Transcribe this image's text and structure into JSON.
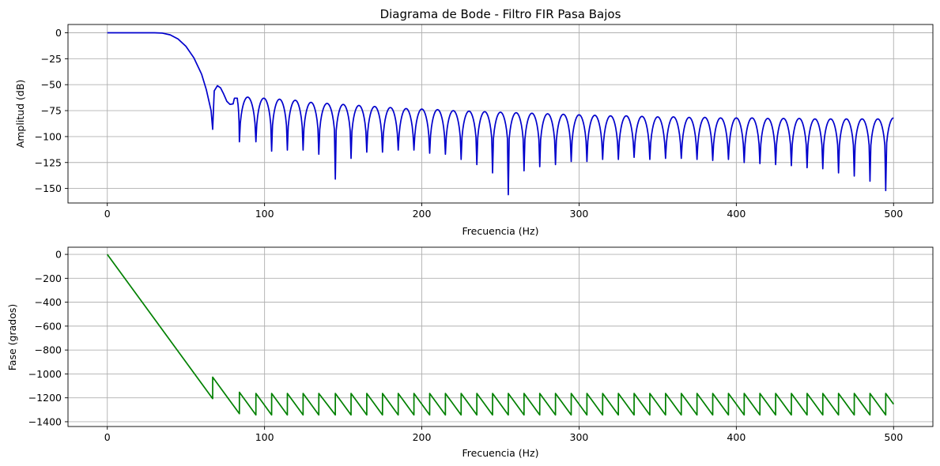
{
  "chart_data": [
    {
      "type": "line",
      "title": "Diagrama de Bode - Filtro FIR Pasa Bajos",
      "xlabel": "Frecuencia (Hz)",
      "ylabel": "Amplitud (dB)",
      "xlim": [
        -25,
        525
      ],
      "ylim": [
        -164,
        8
      ],
      "xticks": [
        0,
        100,
        200,
        300,
        400,
        500
      ],
      "xtick_labels": [
        "0",
        "100",
        "200",
        "300",
        "400",
        "500"
      ],
      "yticks": [
        0,
        -25,
        -50,
        -75,
        -100,
        -125,
        -150
      ],
      "ytick_labels": [
        "0",
        "−25",
        "−50",
        "−75",
        "−100",
        "−125",
        "−150"
      ],
      "grid": true,
      "series": [
        {
          "color": "#0000cc",
          "passband": {
            "x": [
              0,
              10,
              20,
              30,
              35,
              40,
              45,
              50,
              55,
              60,
              63,
              66,
              67
            ],
            "y": [
              0,
              0,
              0,
              0,
              -0.3,
              -2,
              -6,
              -13,
              -24,
              -40,
              -55,
              -75,
              -93
            ]
          },
          "first_sidelobe": {
            "x": [
              67,
              68,
              70,
              72,
              74,
              76,
              78,
              80
            ],
            "y": [
              -93,
              -56,
              -51,
              -53,
              -59,
              -66,
              -69,
              -68.5
            ]
          },
          "notches_x": [
            67,
            84,
            94.5,
            104.5,
            114.5,
            124.5,
            134.5,
            145,
            155,
            165,
            175,
            185,
            195,
            205,
            215,
            225,
            235,
            245,
            255,
            265,
            275,
            285,
            295,
            305,
            315,
            325,
            335,
            345,
            355,
            365,
            375,
            385,
            395,
            405,
            415,
            425,
            435,
            445,
            455,
            465,
            475,
            485,
            495
          ],
          "notch_depths": [
            -93,
            -105,
            -105,
            -114,
            -113,
            -113,
            -117,
            -141,
            -121,
            -115,
            -115,
            -113,
            -113,
            -116,
            -117,
            -122,
            -127,
            -135,
            -156,
            -133,
            -129,
            -127,
            -124,
            -124,
            -122,
            -122,
            -120,
            -122,
            -121,
            -121,
            -122,
            -123,
            -122,
            -125,
            -126,
            -127,
            -128,
            -130,
            -131,
            -135,
            -138,
            -143,
            -152
          ],
          "lobe_peaks": [
            -63,
            -62,
            -63,
            -64,
            -65,
            -67,
            -68,
            -69,
            -70,
            -71,
            -72,
            -73,
            -73.5,
            -74,
            -75,
            -75.5,
            -76,
            -76.5,
            -77,
            -77.5,
            -78,
            -78.5,
            -79,
            -79.5,
            -80,
            -80,
            -80.5,
            -81,
            -81,
            -81.5,
            -81.5,
            -82,
            -82,
            -82,
            -82.5,
            -82.5,
            -82.5,
            -83,
            -83,
            -83,
            -83,
            -83
          ],
          "endpoint": {
            "x": 500,
            "y": -82
          }
        }
      ]
    },
    {
      "type": "line",
      "title": "",
      "xlabel": "Frecuencia (Hz)",
      "ylabel": "Fase (grados)",
      "xlim": [
        -25,
        525
      ],
      "ylim": [
        -1440,
        60
      ],
      "xticks": [
        0,
        100,
        200,
        300,
        400,
        500
      ],
      "xtick_labels": [
        "0",
        "100",
        "200",
        "300",
        "400",
        "500"
      ],
      "yticks": [
        0,
        -200,
        -400,
        -600,
        -800,
        -1000,
        -1200,
        -1400
      ],
      "ytick_labels": [
        "0",
        "−200",
        "−400",
        "−600",
        "−800",
        "−1000",
        "−1200",
        "−1400"
      ],
      "grid": true,
      "series": [
        {
          "color": "#008000",
          "x": [
            0,
            67,
            67,
            84,
            84,
            94.5,
            94.5,
            104.5,
            104.5,
            114.5,
            114.5,
            124.5,
            124.5,
            134.5,
            134.5,
            145,
            145,
            155,
            155,
            165,
            165,
            175,
            175,
            185,
            185,
            195,
            195,
            205,
            205,
            215,
            215,
            225,
            225,
            235,
            235,
            245,
            245,
            255,
            255,
            265,
            265,
            275,
            275,
            285,
            285,
            295,
            295,
            305,
            305,
            315,
            315,
            325,
            325,
            335,
            335,
            345,
            345,
            355,
            355,
            365,
            365,
            375,
            375,
            385,
            385,
            395,
            395,
            405,
            405,
            415,
            415,
            425,
            425,
            435,
            435,
            445,
            445,
            455,
            455,
            465,
            465,
            475,
            475,
            485,
            485,
            495,
            495,
            500
          ],
          "y": [
            0,
            -1207,
            -1027,
            -1333,
            -1153,
            -1343,
            -1163,
            -1343,
            -1163,
            -1343,
            -1163,
            -1343,
            -1163,
            -1343,
            -1163,
            -1343,
            -1163,
            -1343,
            -1163,
            -1343,
            -1163,
            -1343,
            -1163,
            -1343,
            -1163,
            -1343,
            -1163,
            -1343,
            -1163,
            -1343,
            -1163,
            -1343,
            -1163,
            -1343,
            -1163,
            -1343,
            -1163,
            -1343,
            -1163,
            -1343,
            -1163,
            -1343,
            -1163,
            -1343,
            -1163,
            -1343,
            -1163,
            -1343,
            -1163,
            -1343,
            -1163,
            -1343,
            -1163,
            -1343,
            -1163,
            -1343,
            -1163,
            -1343,
            -1163,
            -1343,
            -1163,
            -1343,
            -1163,
            -1343,
            -1163,
            -1343,
            -1163,
            -1343,
            -1163,
            -1343,
            -1163,
            -1343,
            -1163,
            -1343,
            -1163,
            -1343,
            -1163,
            -1343,
            -1163,
            -1343,
            -1163,
            -1343,
            -1163,
            -1343,
            -1163,
            -1343,
            -1163,
            -1253
          ]
        }
      ]
    }
  ]
}
